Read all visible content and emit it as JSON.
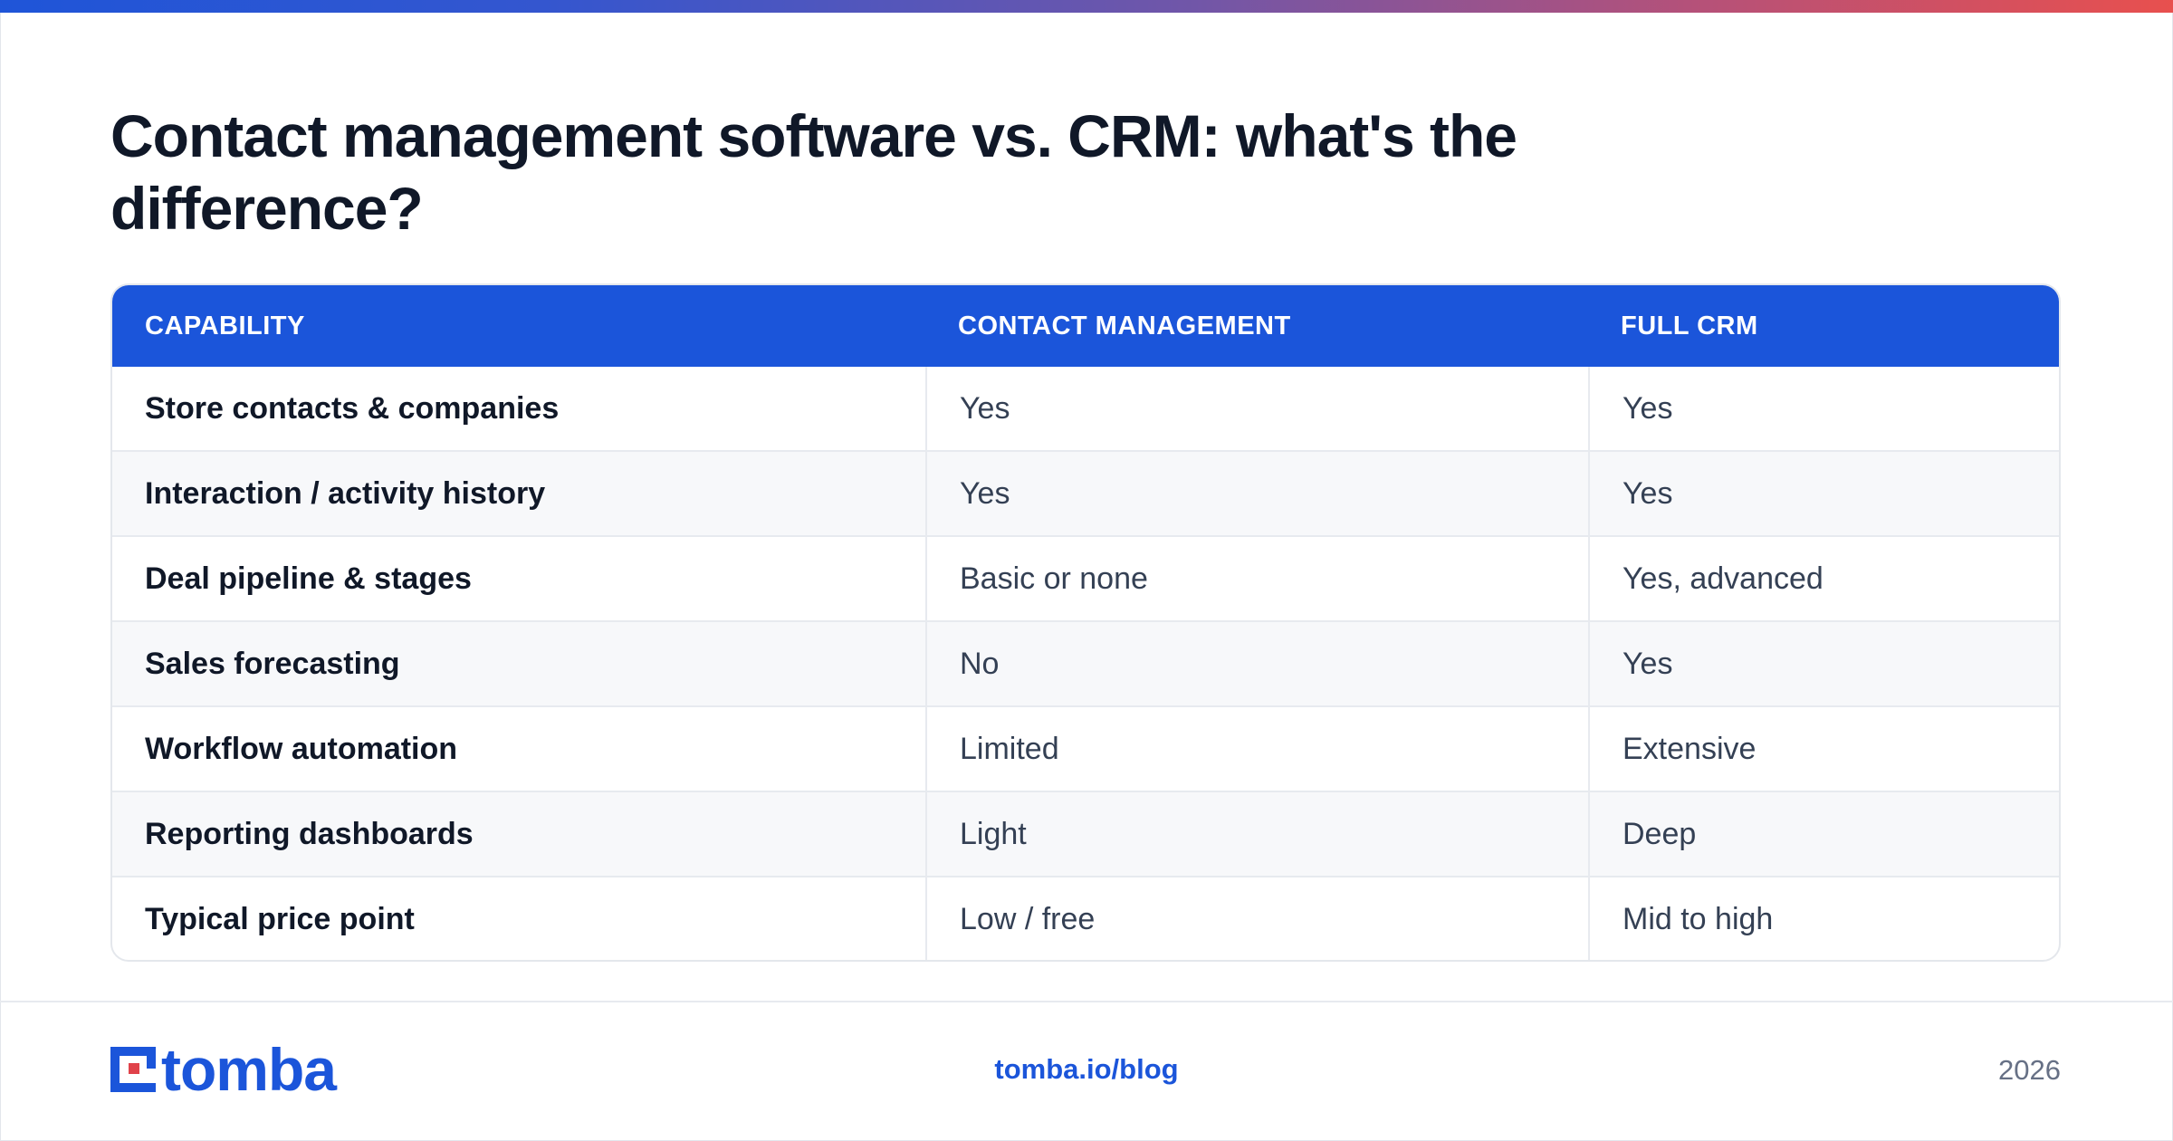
{
  "title": "Contact management software vs. CRM: what's the difference?",
  "colors": {
    "accent": "#1b55da",
    "header_bg": "#1b55da",
    "title": "#101828",
    "gradient_start": "#1f55d8",
    "gradient_end": "#e8504e",
    "logo_red": "#e0424a"
  },
  "table": {
    "headers": [
      "CAPABILITY",
      "CONTACT MANAGEMENT",
      "FULL CRM"
    ],
    "rows": [
      [
        "Store contacts & companies",
        "Yes",
        "Yes"
      ],
      [
        "Interaction / activity history",
        "Yes",
        "Yes"
      ],
      [
        "Deal pipeline & stages",
        "Basic or none",
        "Yes, advanced"
      ],
      [
        "Sales forecasting",
        "No",
        "Yes"
      ],
      [
        "Workflow automation",
        "Limited",
        "Extensive"
      ],
      [
        "Reporting dashboards",
        "Light",
        "Deep"
      ],
      [
        "Typical price point",
        "Low / free",
        "Mid to high"
      ]
    ]
  },
  "footer": {
    "logo_icon": "tomba-logo-icon",
    "logo_text": "tomba",
    "link": "tomba.io/blog",
    "year": "2026"
  }
}
